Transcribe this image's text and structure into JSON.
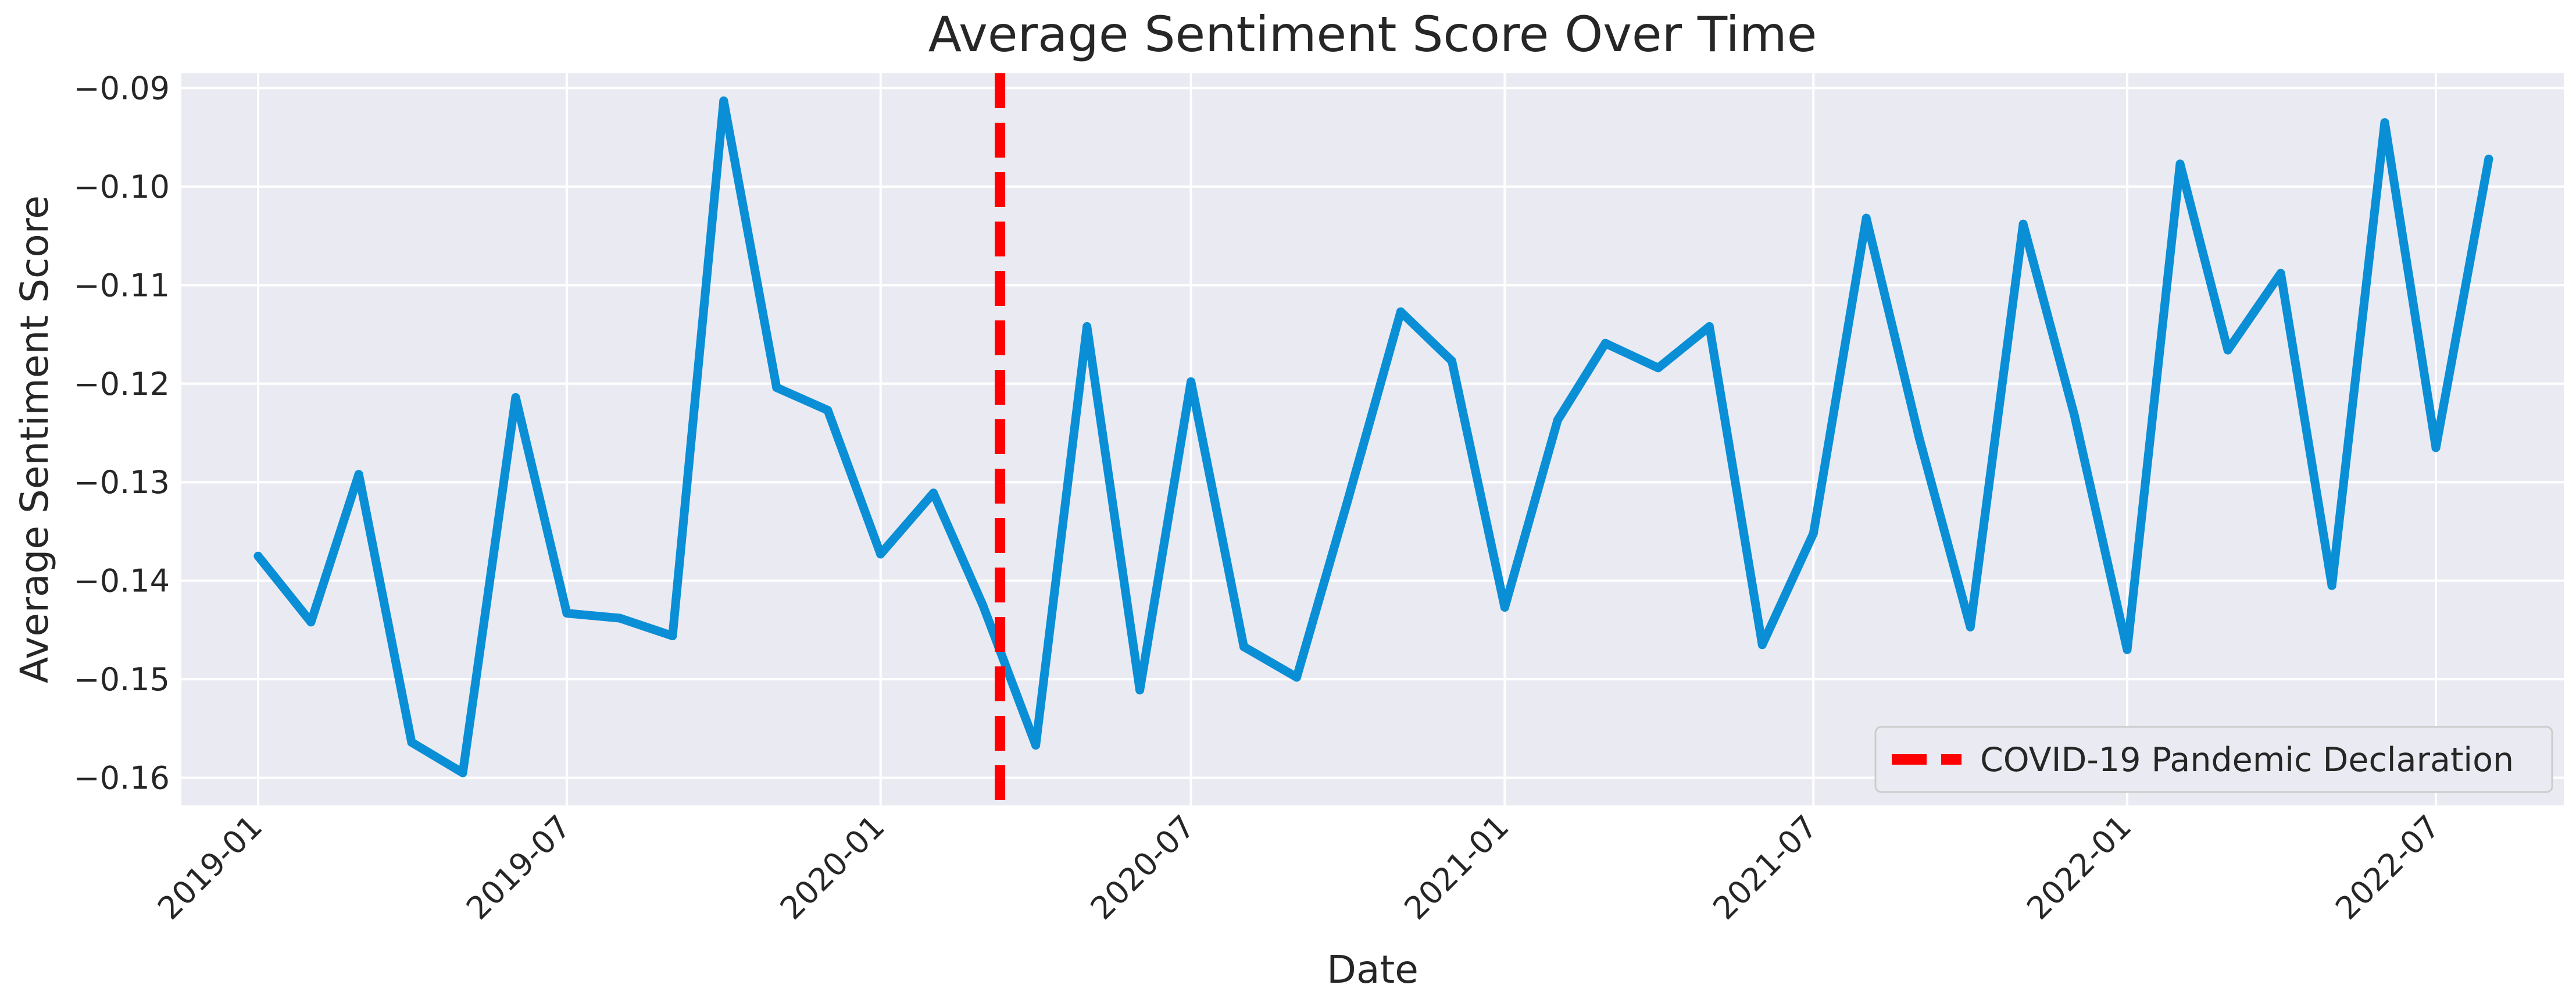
{
  "chart_data": {
    "type": "line",
    "title": "Average Sentiment Score Over Time",
    "xlabel": "Date",
    "ylabel": "Average Sentiment Score",
    "xlim": [
      "2018-11-17",
      "2022-09-14"
    ],
    "ylim": [
      -0.1628,
      -0.0885
    ],
    "x_ticks": [
      {
        "date": "2019-01-01",
        "label": "2019-01"
      },
      {
        "date": "2019-07-01",
        "label": "2019-07"
      },
      {
        "date": "2020-01-01",
        "label": "2020-01"
      },
      {
        "date": "2020-07-01",
        "label": "2020-07"
      },
      {
        "date": "2021-01-01",
        "label": "2021-01"
      },
      {
        "date": "2021-07-01",
        "label": "2021-07"
      },
      {
        "date": "2022-01-01",
        "label": "2022-01"
      },
      {
        "date": "2022-07-01",
        "label": "2022-07"
      }
    ],
    "y_ticks": [
      {
        "value": -0.16,
        "label": "−0.16"
      },
      {
        "value": -0.15,
        "label": "−0.15"
      },
      {
        "value": -0.14,
        "label": "−0.14"
      },
      {
        "value": -0.13,
        "label": "−0.13"
      },
      {
        "value": -0.12,
        "label": "−0.12"
      },
      {
        "value": -0.11,
        "label": "−0.11"
      },
      {
        "value": -0.1,
        "label": "−0.10"
      },
      {
        "value": -0.09,
        "label": "−0.09"
      }
    ],
    "grid": true,
    "legend": {
      "position": "lower-right"
    },
    "series": [
      {
        "color": "#0a8fd6",
        "x": [
          "2019-01-01",
          "2019-02-01",
          "2019-03-01",
          "2019-04-01",
          "2019-05-01",
          "2019-06-01",
          "2019-07-01",
          "2019-08-01",
          "2019-09-01",
          "2019-10-01",
          "2019-11-01",
          "2019-12-01",
          "2020-01-01",
          "2020-02-01",
          "2020-03-01",
          "2020-04-01",
          "2020-05-01",
          "2020-06-01",
          "2020-07-01",
          "2020-08-01",
          "2020-09-01",
          "2020-10-01",
          "2020-11-01",
          "2020-12-01",
          "2021-01-01",
          "2021-02-01",
          "2021-03-01",
          "2021-04-01",
          "2021-05-01",
          "2021-06-01",
          "2021-07-01",
          "2021-08-01",
          "2021-09-01",
          "2021-10-01",
          "2021-11-01",
          "2021-12-01",
          "2022-01-01",
          "2022-02-01",
          "2022-03-01",
          "2022-04-01",
          "2022-05-01",
          "2022-06-01",
          "2022-07-01",
          "2022-08-01"
        ],
        "values": [
          -0.1375,
          -0.1442,
          -0.1292,
          -0.1564,
          -0.1595,
          -0.1214,
          -0.1433,
          -0.1438,
          -0.1456,
          -0.0913,
          -0.1204,
          -0.1227,
          -0.1373,
          -0.1311,
          -0.1425,
          -0.1567,
          -0.1142,
          -0.1511,
          -0.1198,
          -0.1467,
          -0.1498,
          -0.1318,
          -0.1127,
          -0.1177,
          -0.1427,
          -0.1237,
          -0.1159,
          -0.1184,
          -0.1142,
          -0.1465,
          -0.1352,
          -0.1032,
          -0.1255,
          -0.1447,
          -0.1038,
          -0.1232,
          -0.147,
          -0.0977,
          -0.1166,
          -0.1088,
          -0.1405,
          -0.0935,
          -0.1265,
          -0.0972
        ]
      }
    ],
    "vline": {
      "date": "2020-03-11",
      "label": "COVID-19 Pandemic Declaration",
      "color": "#ff0000",
      "style": "dashed"
    },
    "colors": {
      "plot_background": "#eaeaf2",
      "grid": "#ffffff",
      "text": "#262626"
    }
  }
}
